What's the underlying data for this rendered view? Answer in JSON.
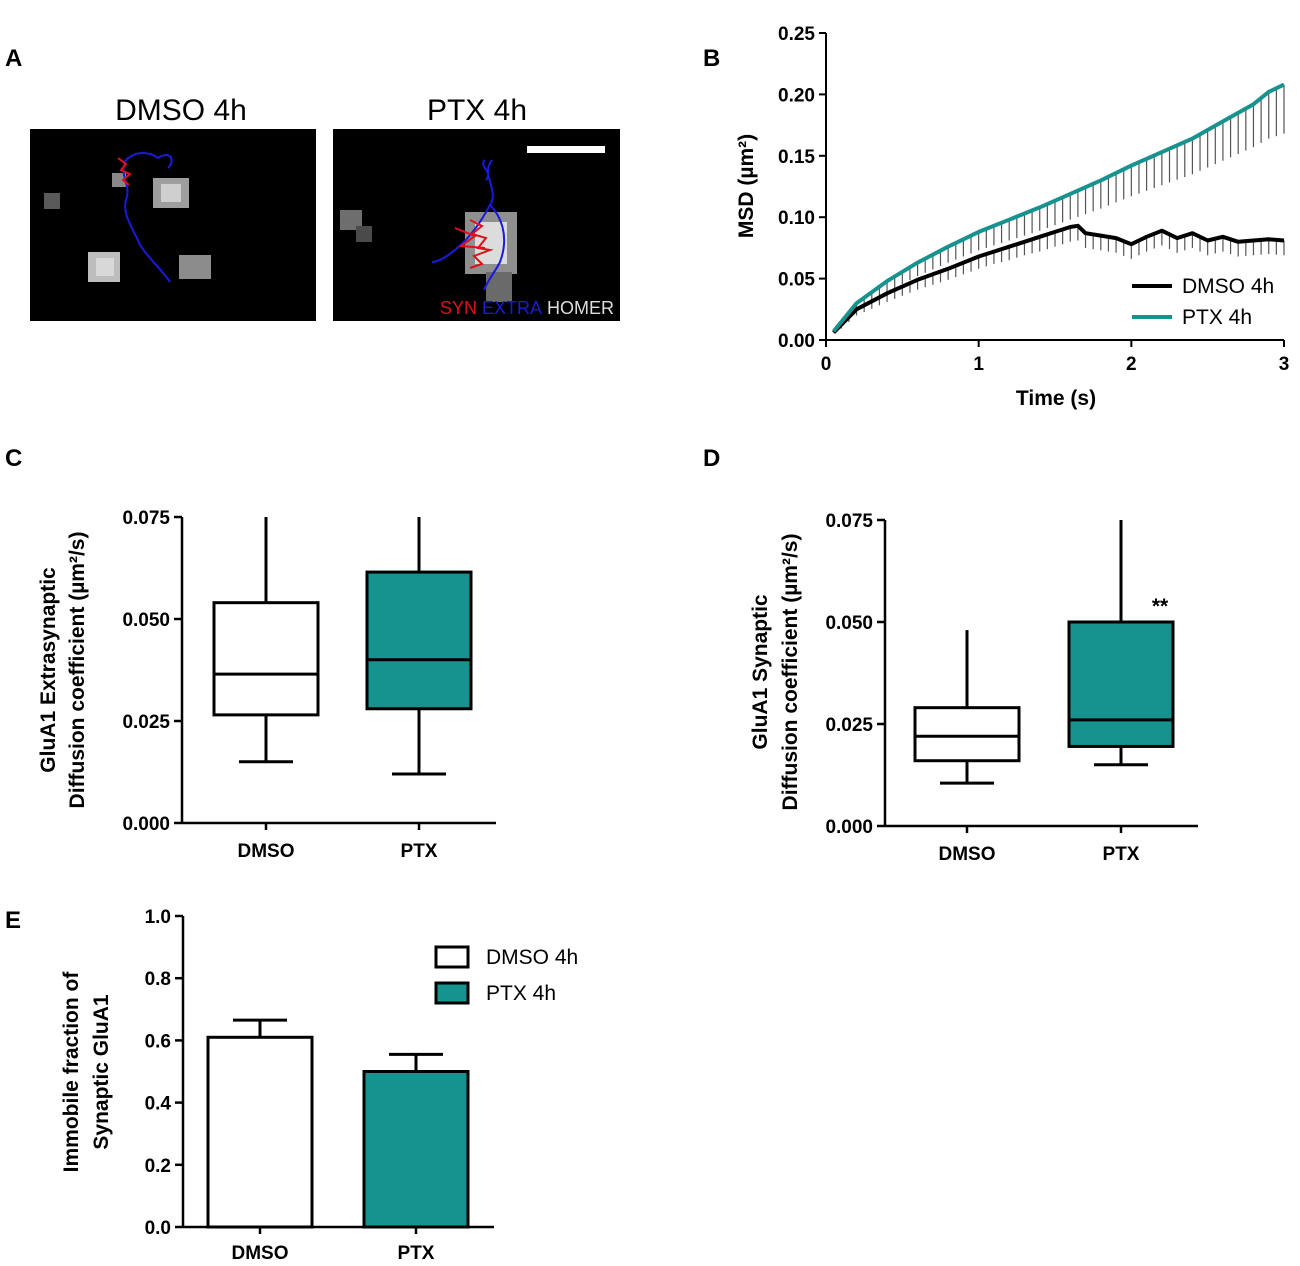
{
  "panel_labels": {
    "a": "A",
    "b": "B",
    "c": "C",
    "d": "D",
    "e": "E"
  },
  "colors": {
    "dmso": "#000000",
    "ptx": "#16928f",
    "ptx_fill": "#16928f",
    "dmso_fill": "#ffffff"
  },
  "panel_a": {
    "title_left": "DMSO 4h",
    "title_right": "PTX 4h",
    "channels": {
      "syn": "SYN",
      "extra": "EXTRA",
      "homer": "HOMER"
    },
    "channel_colors": {
      "syn": "#e0101a",
      "extra": "#1a1adc",
      "homer": "#dddddd"
    }
  },
  "chart_data": [
    {
      "panel": "B",
      "type": "line",
      "title": "",
      "xlabel": "Time (s)",
      "ylabel": "MSD (µm²)",
      "xlim": [
        0,
        3
      ],
      "ylim": [
        0,
        0.25
      ],
      "xticks": [
        "0",
        "1",
        "2",
        "3"
      ],
      "yticks": [
        "0.00",
        "0.05",
        "0.10",
        "0.15",
        "0.20",
        "0.25"
      ],
      "legend_position": "bottom-right",
      "series": [
        {
          "name": "DMSO 4h",
          "x": [
            0.05,
            0.2,
            0.4,
            0.6,
            0.8,
            1.0,
            1.1,
            1.2,
            1.3,
            1.4,
            1.5,
            1.6,
            1.65,
            1.7,
            1.8,
            1.9,
            2.0,
            2.1,
            2.2,
            2.3,
            2.4,
            2.5,
            2.6,
            2.7,
            2.8,
            2.9,
            3.0
          ],
          "y": [
            0.006,
            0.025,
            0.038,
            0.049,
            0.058,
            0.068,
            0.072,
            0.076,
            0.08,
            0.084,
            0.088,
            0.092,
            0.093,
            0.087,
            0.085,
            0.083,
            0.078,
            0.084,
            0.089,
            0.083,
            0.087,
            0.081,
            0.084,
            0.08,
            0.081,
            0.082,
            0.081
          ],
          "error_minus": [
            0.002,
            0.005,
            0.007,
            0.008,
            0.009,
            0.01,
            0.01,
            0.011,
            0.011,
            0.012,
            0.012,
            0.012,
            0.012,
            0.012,
            0.012,
            0.012,
            0.012,
            0.012,
            0.012,
            0.012,
            0.012,
            0.012,
            0.012,
            0.012,
            0.012,
            0.012,
            0.012
          ]
        },
        {
          "name": "PTX 4h",
          "x": [
            0.05,
            0.2,
            0.4,
            0.6,
            0.8,
            1.0,
            1.2,
            1.4,
            1.6,
            1.8,
            2.0,
            2.2,
            2.4,
            2.6,
            2.8,
            2.9,
            3.0
          ],
          "y": [
            0.007,
            0.03,
            0.048,
            0.063,
            0.076,
            0.088,
            0.098,
            0.108,
            0.119,
            0.13,
            0.142,
            0.153,
            0.164,
            0.178,
            0.192,
            0.202,
            0.208
          ],
          "error_minus": [
            0.002,
            0.006,
            0.009,
            0.011,
            0.013,
            0.015,
            0.017,
            0.019,
            0.021,
            0.023,
            0.025,
            0.027,
            0.029,
            0.032,
            0.035,
            0.038,
            0.04
          ]
        }
      ]
    },
    {
      "panel": "C",
      "type": "box",
      "title": "",
      "xlabel": "",
      "ylabel_lines": [
        "GluA1 Extrasynaptic",
        "Diffusion coefficient  (µm²/s)"
      ],
      "ylim": [
        0,
        0.075
      ],
      "yticks": [
        "0.000",
        "0.025",
        "0.050",
        "0.075"
      ],
      "categories": [
        "DMSO",
        "PTX"
      ],
      "boxes": [
        {
          "name": "DMSO",
          "min": 0.015,
          "q1": 0.0265,
          "median": 0.0365,
          "q3": 0.054,
          "max": 0.075
        },
        {
          "name": "PTX",
          "min": 0.012,
          "q1": 0.028,
          "median": 0.04,
          "q3": 0.0615,
          "max": 0.075
        }
      ]
    },
    {
      "panel": "D",
      "type": "box",
      "title": "",
      "xlabel": "",
      "ylabel_lines": [
        "GluA1 Synaptic",
        "Diffusion coefficient  (µm²/s)"
      ],
      "ylim": [
        0,
        0.075
      ],
      "yticks": [
        "0.000",
        "0.025",
        "0.050",
        "0.075"
      ],
      "categories": [
        "DMSO",
        "PTX"
      ],
      "annotation": "**",
      "boxes": [
        {
          "name": "DMSO",
          "min": 0.0105,
          "q1": 0.016,
          "median": 0.022,
          "q3": 0.029,
          "max": 0.048
        },
        {
          "name": "PTX",
          "min": 0.015,
          "q1": 0.0195,
          "median": 0.026,
          "q3": 0.05,
          "max": 0.075
        }
      ]
    },
    {
      "panel": "E",
      "type": "bar",
      "title": "",
      "xlabel": "",
      "ylabel_lines": [
        "Immobile fraction of",
        "Synaptic GluA1"
      ],
      "ylim": [
        0,
        1.0
      ],
      "yticks": [
        "0.0",
        "0.2",
        "0.4",
        "0.6",
        "0.8",
        "1.0"
      ],
      "categories": [
        "DMSO",
        "PTX"
      ],
      "values": [
        0.61,
        0.5
      ],
      "error_plus": [
        0.055,
        0.055
      ],
      "legend": [
        "DMSO 4h",
        "PTX 4h"
      ],
      "legend_position": "top-right"
    }
  ]
}
